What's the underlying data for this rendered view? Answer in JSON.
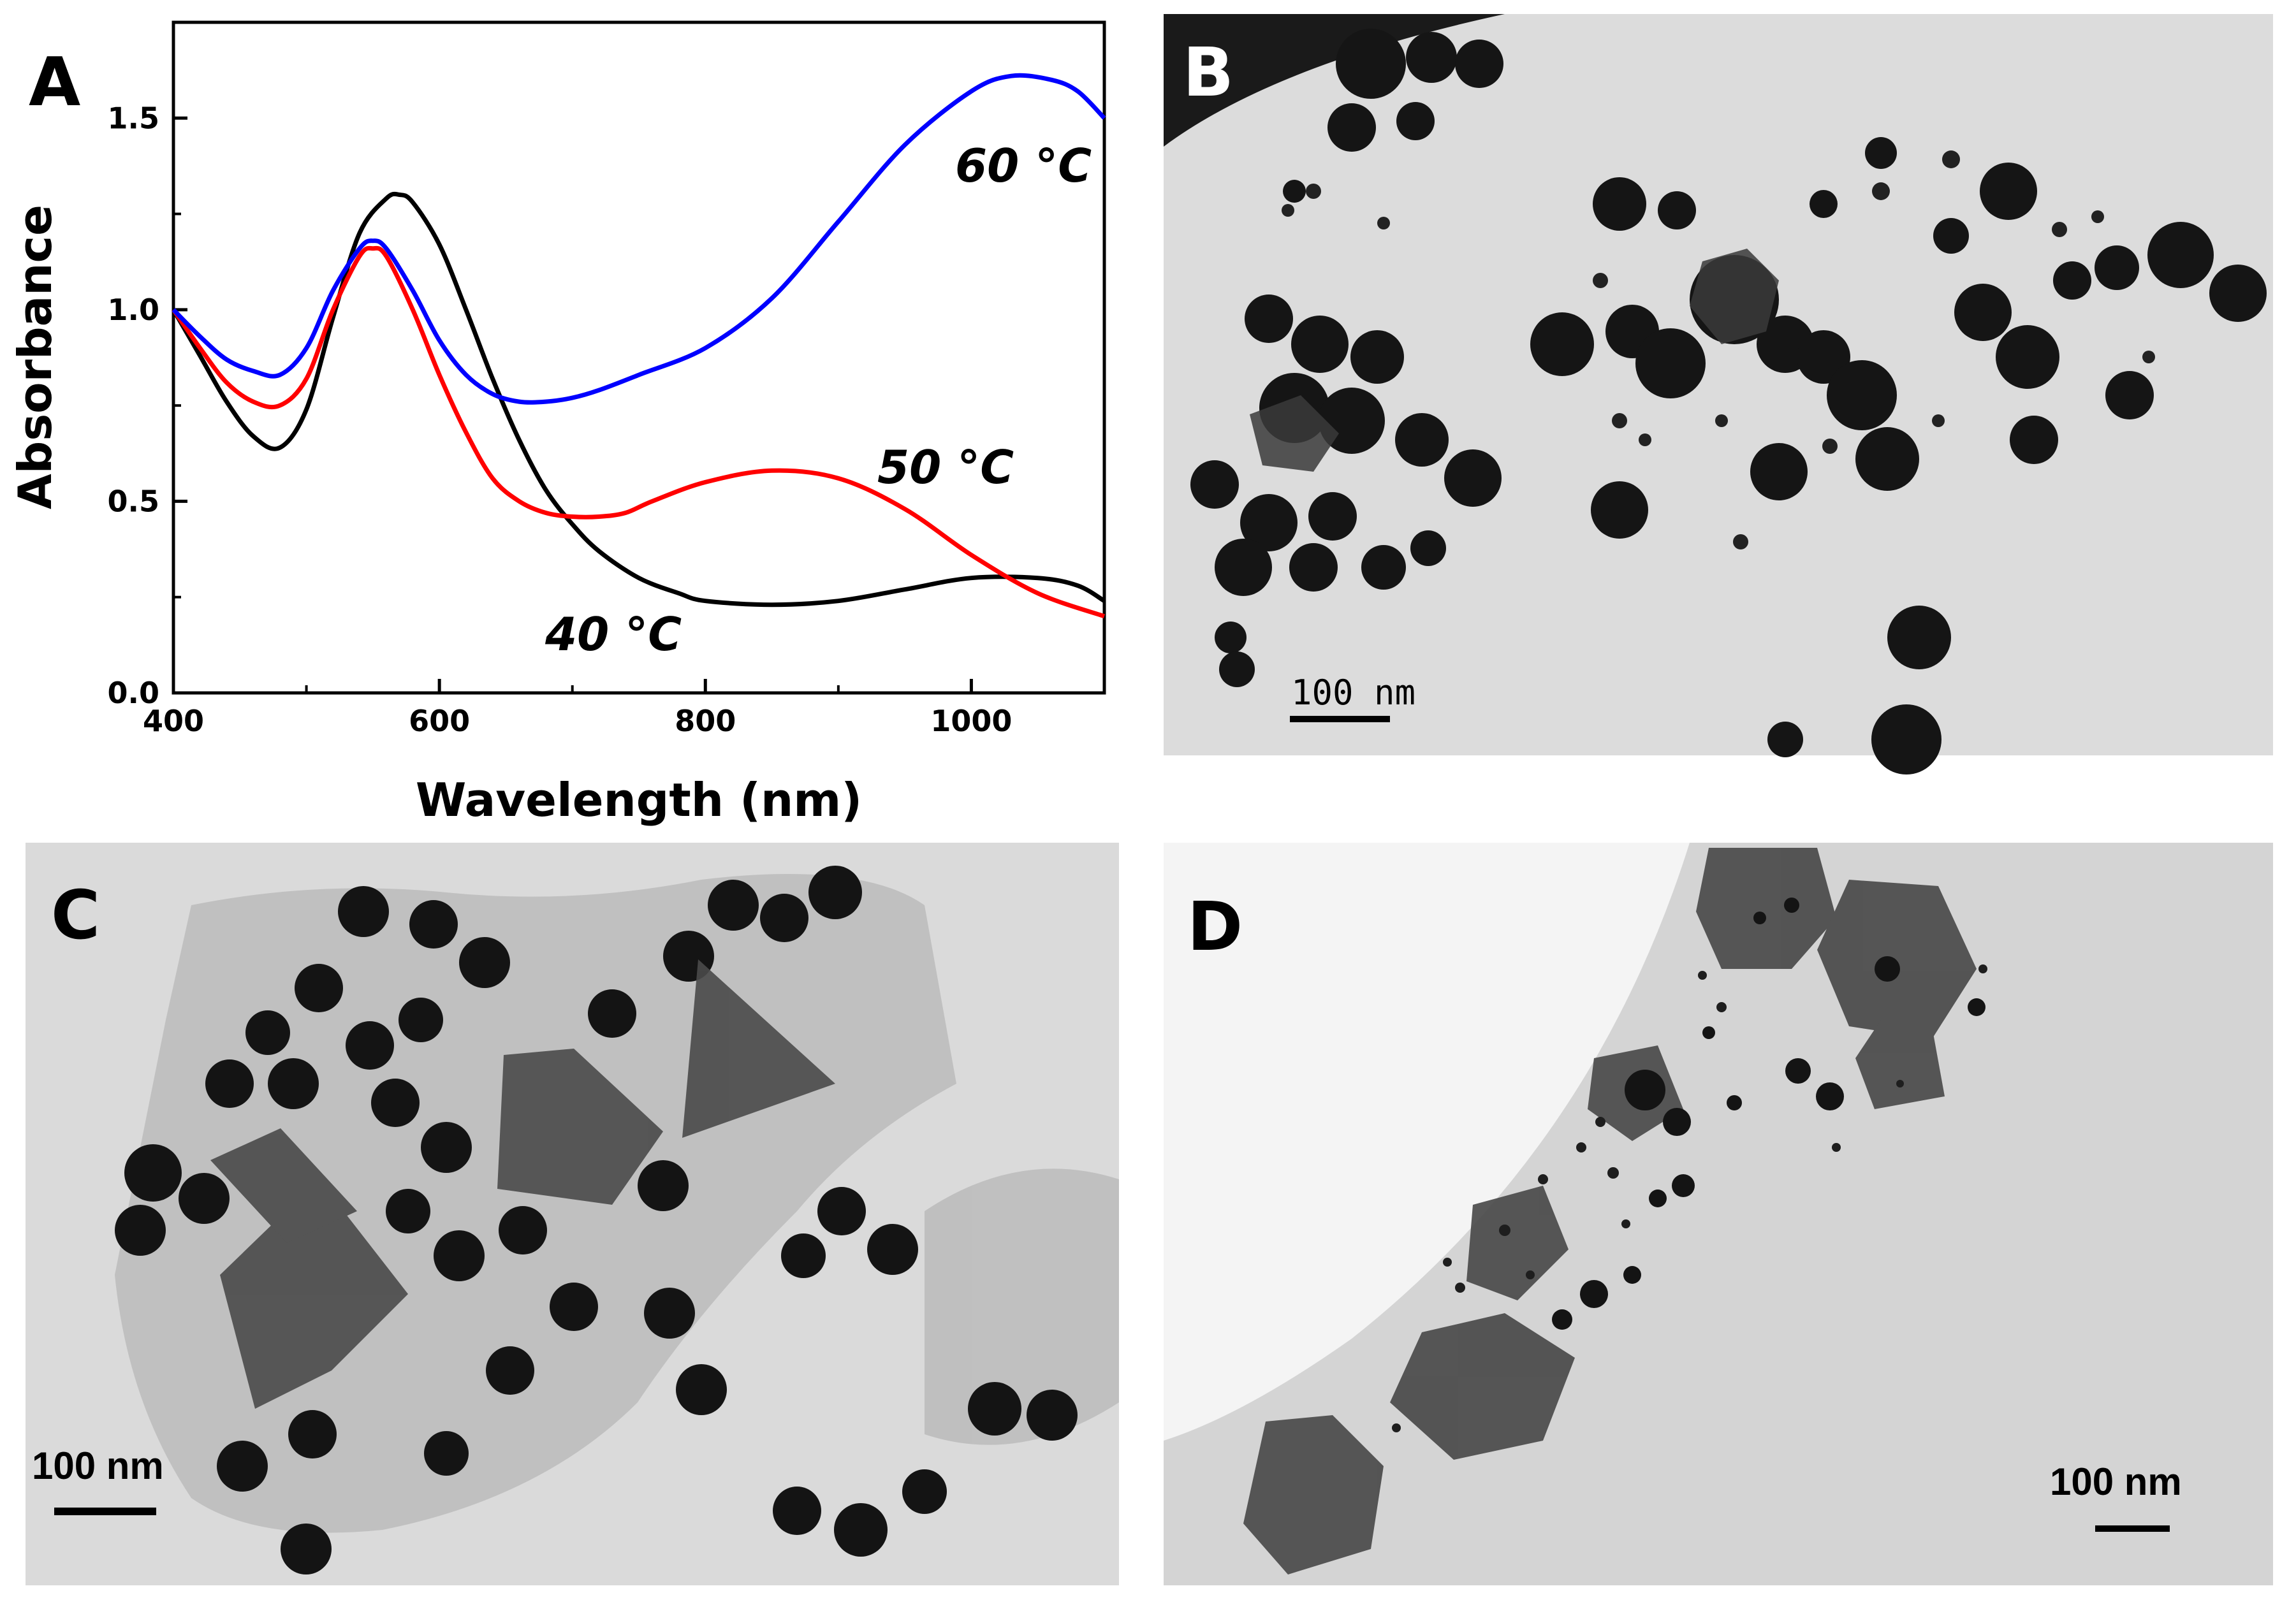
{
  "panels": {
    "a": {
      "letter": "A"
    },
    "b": {
      "letter": "B",
      "scale_bar": "100 nm"
    },
    "c": {
      "letter": "C",
      "scale_bar": "100 nm"
    },
    "d": {
      "letter": "D",
      "scale_bar": "100 nm"
    }
  },
  "chart_data": {
    "type": "line",
    "title": "",
    "xlabel": "Wavelength (nm)",
    "ylabel": "Absorbance",
    "xlim": [
      400,
      1100
    ],
    "ylim": [
      0,
      1.75
    ],
    "xticks": [
      400,
      600,
      800,
      1000
    ],
    "yticks": [
      0.0,
      0.5,
      1.0,
      1.5
    ],
    "xtick_labels": [
      "400",
      "600",
      "800",
      "1000"
    ],
    "ytick_labels": [
      "0.0",
      "0.5",
      "1.0",
      "1.5"
    ],
    "grid": false,
    "series": [
      {
        "name": "40 °C",
        "color": "#000000",
        "x": [
          400,
          420,
          440,
          460,
          480,
          500,
          520,
          540,
          560,
          570,
          580,
          600,
          620,
          640,
          660,
          680,
          700,
          720,
          750,
          780,
          800,
          850,
          900,
          950,
          1000,
          1050,
          1080,
          1100
        ],
        "y": [
          1.0,
          0.88,
          0.76,
          0.67,
          0.64,
          0.74,
          0.98,
          1.2,
          1.29,
          1.3,
          1.28,
          1.17,
          1.0,
          0.82,
          0.66,
          0.53,
          0.44,
          0.37,
          0.3,
          0.26,
          0.24,
          0.23,
          0.24,
          0.27,
          0.3,
          0.3,
          0.28,
          0.24
        ]
      },
      {
        "name": "50 °C",
        "color": "#ff0000",
        "x": [
          400,
          420,
          440,
          460,
          480,
          500,
          520,
          540,
          550,
          560,
          580,
          600,
          620,
          640,
          660,
          680,
          700,
          720,
          740,
          760,
          800,
          850,
          900,
          950,
          1000,
          1050,
          1100
        ],
        "y": [
          1.0,
          0.9,
          0.81,
          0.76,
          0.75,
          0.82,
          1.0,
          1.14,
          1.16,
          1.14,
          1.0,
          0.83,
          0.68,
          0.56,
          0.5,
          0.47,
          0.46,
          0.46,
          0.47,
          0.5,
          0.55,
          0.58,
          0.56,
          0.48,
          0.36,
          0.26,
          0.2
        ]
      },
      {
        "name": "60 °C",
        "color": "#0000ff",
        "x": [
          400,
          420,
          440,
          460,
          480,
          500,
          520,
          540,
          550,
          560,
          580,
          600,
          620,
          640,
          660,
          680,
          700,
          720,
          750,
          800,
          850,
          900,
          950,
          1000,
          1030,
          1060,
          1080,
          1100
        ],
        "y": [
          1.0,
          0.93,
          0.87,
          0.84,
          0.83,
          0.9,
          1.05,
          1.16,
          1.18,
          1.16,
          1.05,
          0.92,
          0.83,
          0.78,
          0.76,
          0.76,
          0.77,
          0.79,
          0.83,
          0.9,
          1.03,
          1.23,
          1.43,
          1.57,
          1.61,
          1.6,
          1.57,
          1.5
        ]
      }
    ]
  }
}
